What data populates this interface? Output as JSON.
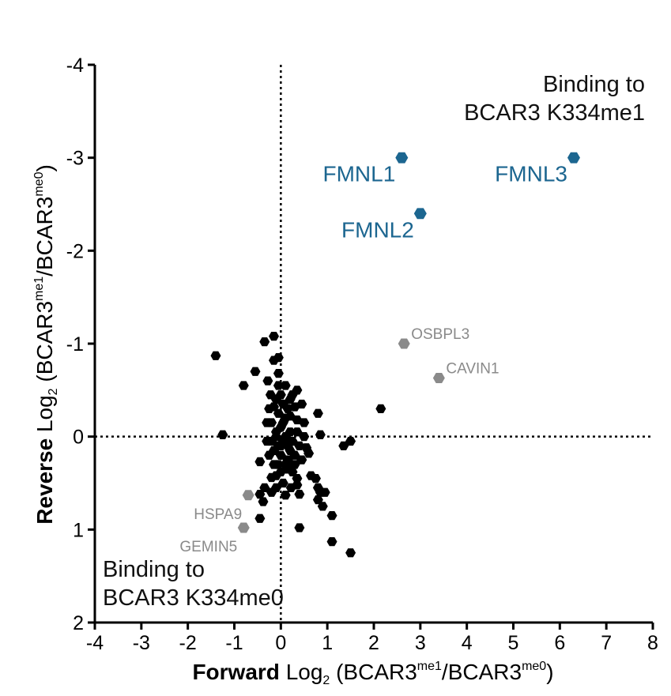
{
  "chart_data": {
    "type": "scatter",
    "xlabel": {
      "bold": "Forward",
      "prefix": " Log",
      "sub": "2",
      "open": " (BCAR3",
      "sup1": "me1",
      "mid": "/BCAR3",
      "sup2": "me0",
      "close": ")"
    },
    "ylabel": {
      "bold": "Reverse",
      "prefix": " Log",
      "sub": "2",
      "open": " (BCAR3",
      "sup1": "me1",
      "mid": "/BCAR3",
      "sup2": "me0",
      "close": ")"
    },
    "xlim": [
      -4,
      8
    ],
    "ylim": [
      2,
      -4
    ],
    "y_axis_inverted": true,
    "xticks": [
      "-4",
      "-3",
      "-2",
      "-1",
      "0",
      "1",
      "2",
      "3",
      "4",
      "5",
      "6",
      "7",
      "8"
    ],
    "yticks": [
      "-4",
      "-3",
      "-2",
      "-1",
      "0",
      "1",
      "2"
    ],
    "reference_lines": {
      "x": 0,
      "y": 0,
      "style": "dotted"
    },
    "annotations": {
      "top_right": [
        "Binding to",
        "BCAR3 K334me1"
      ],
      "bottom_left": [
        "Binding to",
        "BCAR3 K334me0"
      ]
    },
    "colors": {
      "background": "#000000",
      "highlight_me1": "#1c6690",
      "highlight_me0": "#8a8a8a"
    },
    "marker": "hexagon",
    "highlighted_points": [
      {
        "label": "FMNL1",
        "x": 2.6,
        "y": -3.0,
        "color": "#1c6690",
        "group": "me1"
      },
      {
        "label": "FMNL3",
        "x": 6.3,
        "y": -3.0,
        "color": "#1c6690",
        "group": "me1"
      },
      {
        "label": "FMNL2",
        "x": 3.0,
        "y": -2.4,
        "color": "#1c6690",
        "group": "me1"
      },
      {
        "label": "OSBPL3",
        "x": 2.65,
        "y": -1.0,
        "color": "#8a8a8a",
        "group": "me1_minor"
      },
      {
        "label": "CAVIN1",
        "x": 3.4,
        "y": -0.63,
        "color": "#8a8a8a",
        "group": "me1_minor"
      },
      {
        "label": "HSPA9",
        "x": -0.7,
        "y": 0.63,
        "color": "#8a8a8a",
        "group": "me0"
      },
      {
        "label": "GEMIN5",
        "x": -0.8,
        "y": 0.98,
        "color": "#8a8a8a",
        "group": "me0"
      }
    ],
    "background_points": [
      [
        -1.4,
        -0.87
      ],
      [
        -1.25,
        -0.02
      ],
      [
        -0.8,
        -0.55
      ],
      [
        -0.55,
        -0.7
      ],
      [
        -0.35,
        -1.02
      ],
      [
        -0.28,
        -0.6
      ],
      [
        -0.3,
        0.05
      ],
      [
        -0.45,
        0.27
      ],
      [
        -0.2,
        0.44
      ],
      [
        -0.35,
        0.55
      ],
      [
        -0.45,
        0.62
      ],
      [
        -0.38,
        0.7
      ],
      [
        -0.45,
        0.88
      ],
      [
        -0.2,
        0.6
      ],
      [
        -0.1,
        0.55
      ],
      [
        0.05,
        0.5
      ],
      [
        0.1,
        0.63
      ],
      [
        0.22,
        0.55
      ],
      [
        0.35,
        0.52
      ],
      [
        0.4,
        0.62
      ],
      [
        0.4,
        0.98
      ],
      [
        0.15,
        0.35
      ],
      [
        0.3,
        0.3
      ],
      [
        0.45,
        0.25
      ],
      [
        -0.05,
        -0.68
      ],
      [
        -0.15,
        -0.82
      ],
      [
        -0.05,
        -0.85
      ],
      [
        -0.15,
        -1.08
      ],
      [
        0.35,
        -0.5
      ],
      [
        -0.22,
        -0.45
      ],
      [
        -0.15,
        -0.32
      ],
      [
        0.0,
        -0.45
      ],
      [
        0.25,
        -0.45
      ],
      [
        -0.2,
        -0.15
      ],
      [
        0.1,
        -0.2
      ],
      [
        0.35,
        -0.05
      ],
      [
        0.5,
        -0.15
      ],
      [
        0.5,
        0.0
      ],
      [
        0.55,
        0.12
      ],
      [
        0.6,
        0.18
      ],
      [
        0.65,
        0.42
      ],
      [
        0.8,
        -0.25
      ],
      [
        0.85,
        -0.02
      ],
      [
        0.75,
        0.45
      ],
      [
        0.8,
        0.55
      ],
      [
        0.85,
        0.6
      ],
      [
        0.95,
        0.6
      ],
      [
        0.8,
        0.68
      ],
      [
        0.9,
        0.75
      ],
      [
        1.1,
        0.85
      ],
      [
        1.1,
        1.13
      ],
      [
        1.5,
        1.25
      ],
      [
        1.35,
        0.1
      ],
      [
        1.5,
        0.05
      ],
      [
        2.15,
        -0.3
      ],
      [
        -0.1,
        0.0
      ],
      [
        0.0,
        0.1
      ],
      [
        0.1,
        0.0
      ],
      [
        0.2,
        -0.05
      ],
      [
        0.0,
        -0.1
      ],
      [
        -0.05,
        -0.25
      ],
      [
        0.15,
        -0.3
      ],
      [
        0.2,
        0.15
      ],
      [
        0.0,
        0.2
      ],
      [
        -0.15,
        0.15
      ],
      [
        -0.1,
        -0.05
      ],
      [
        0.05,
        0.05
      ],
      [
        0.15,
        0.1
      ],
      [
        0.25,
        0.05
      ],
      [
        0.3,
        0.2
      ],
      [
        0.15,
        0.25
      ],
      [
        -0.05,
        0.3
      ],
      [
        -0.15,
        0.3
      ],
      [
        -0.25,
        0.2
      ],
      [
        -0.3,
        -0.15
      ],
      [
        -0.25,
        -0.3
      ],
      [
        -0.1,
        -0.4
      ],
      [
        0.05,
        -0.35
      ],
      [
        0.2,
        -0.22
      ],
      [
        0.35,
        -0.18
      ],
      [
        0.4,
        0.1
      ],
      [
        0.05,
        -0.15
      ],
      [
        -0.05,
        0.1
      ],
      [
        0.1,
        0.3
      ],
      [
        0.25,
        0.38
      ],
      [
        -0.1,
        0.42
      ],
      [
        0.0,
        0.38
      ],
      [
        0.3,
        -0.32
      ],
      [
        0.45,
        -0.35
      ],
      [
        -0.2,
        0.05
      ],
      [
        -0.05,
        -0.55
      ],
      [
        0.1,
        -0.55
      ],
      [
        0.2,
        -0.4
      ],
      [
        0.35,
        0.45
      ]
    ]
  }
}
